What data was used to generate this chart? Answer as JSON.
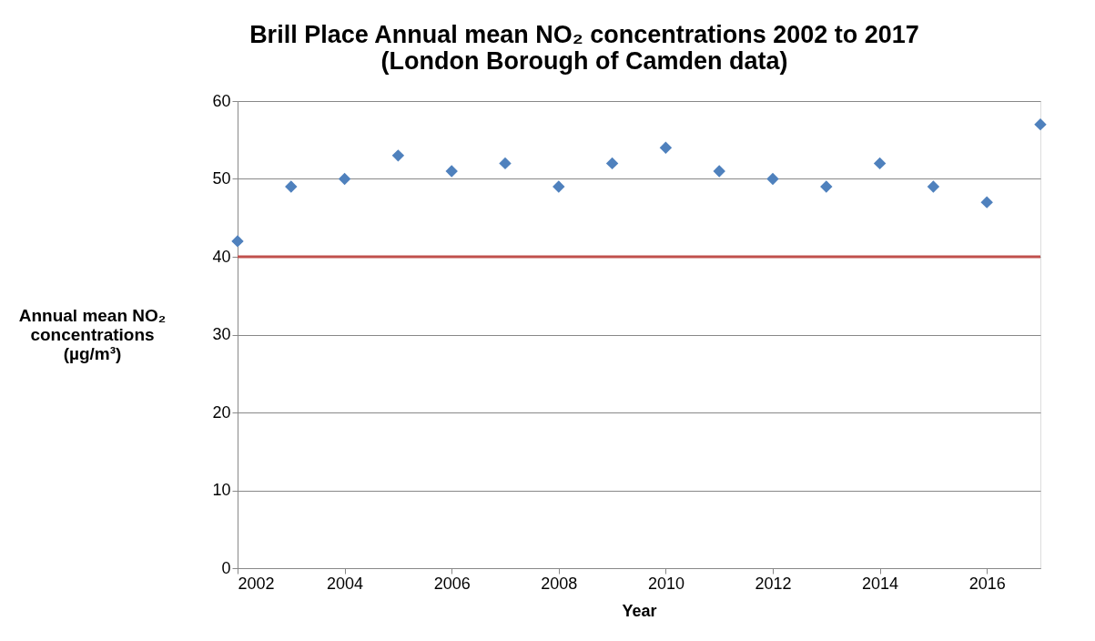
{
  "chart_data": {
    "type": "scatter",
    "title": "Brill Place Annual mean NO₂ concentrations 2002 to 2017\n(London Borough of  Camden data)",
    "xlabel": "Year",
    "ylabel": "Annual mean NO₂\nconcentrations\n(µg/m³)",
    "x": [
      2002,
      2003,
      2004,
      2005,
      2006,
      2007,
      2008,
      2009,
      2010,
      2011,
      2012,
      2013,
      2014,
      2015,
      2016,
      2017
    ],
    "series": [
      {
        "color": "#4f81bd",
        "values": [
          42,
          49,
          50,
          53,
          51,
          52,
          49,
          52,
          54,
          51,
          50,
          49,
          52,
          49,
          47,
          57
        ]
      }
    ],
    "xlim": [
      2002,
      2017
    ],
    "xticks": [
      2002,
      2004,
      2006,
      2008,
      2010,
      2012,
      2014,
      2016
    ],
    "ylim": [
      0,
      60
    ],
    "yticks": [
      0,
      10,
      20,
      30,
      40,
      50,
      60
    ],
    "ref_lines": [
      {
        "axis": "y",
        "value": 40,
        "label": null,
        "color": "#c0504d",
        "line_style": "solid"
      }
    ],
    "grid": "y",
    "marker": "diamond"
  }
}
